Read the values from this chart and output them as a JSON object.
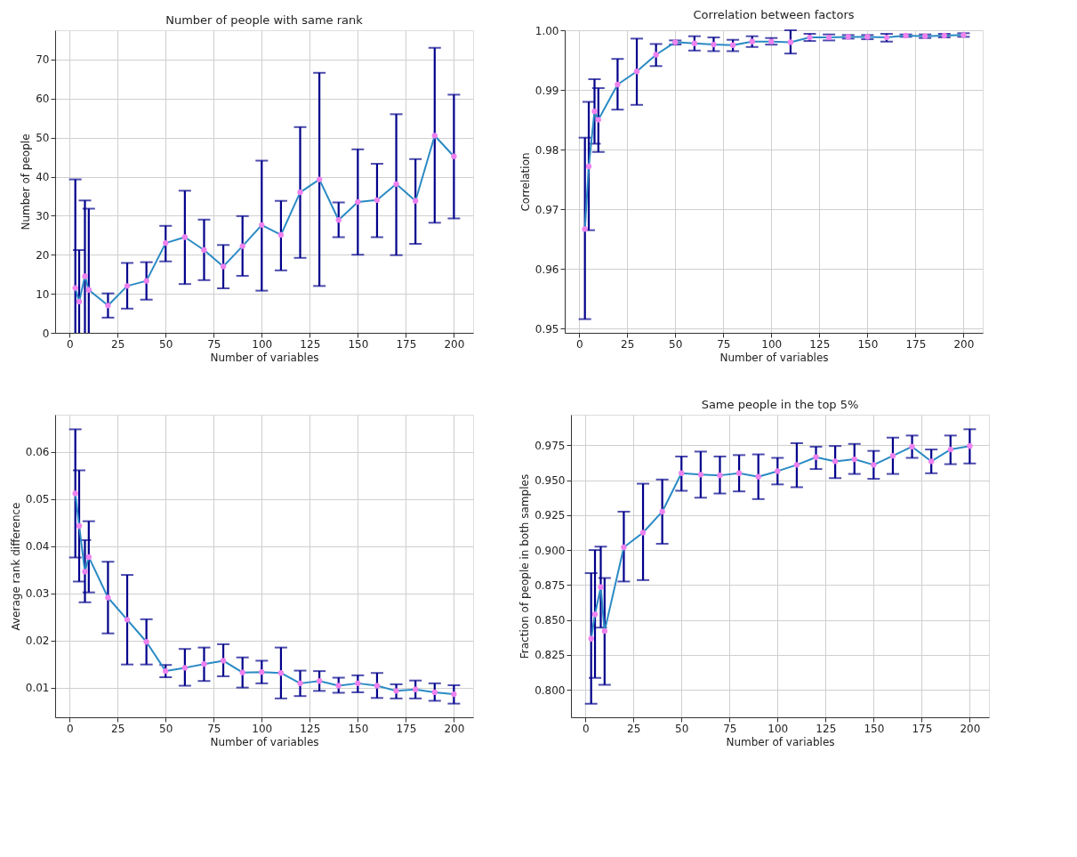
{
  "chart_data": [
    {
      "type": "line",
      "title": "Number of people with same rank",
      "xlabel": "Number of variables",
      "ylabel": "Number of people",
      "grid": true,
      "marker": "circle",
      "line_style": "solid",
      "xlim": [
        -7.5,
        210
      ],
      "xticks": [
        0,
        25,
        50,
        75,
        100,
        125,
        150,
        175,
        200
      ],
      "ylim": [
        0,
        77.5
      ],
      "yticks": [
        0,
        10,
        20,
        30,
        40,
        50,
        60,
        70
      ],
      "series": [
        {
          "color": "#2a8ac4",
          "x": [
            3,
            5,
            8,
            10,
            20,
            30,
            40,
            50,
            60,
            70,
            80,
            90,
            100,
            110,
            120,
            130,
            140,
            150,
            160,
            170,
            180,
            190,
            200
          ],
          "values": [
            11.5,
            8,
            14.5,
            11,
            7,
            12,
            13.3,
            23,
            24.5,
            21.2,
            17,
            22.2,
            27.6,
            25.1,
            36,
            39.3,
            28.9,
            33.5,
            34,
            38.1,
            33.8,
            50.5,
            45.2
          ],
          "errors": [
            [
              0,
              39.3
            ],
            [
              0,
              21.2
            ],
            [
              0,
              33.9
            ],
            [
              0,
              31.8
            ],
            [
              3.9,
              10.1
            ],
            [
              6.2,
              17.9
            ],
            [
              8.5,
              18.1
            ],
            [
              18.3,
              27.4
            ],
            [
              12.5,
              36.4
            ],
            [
              13.5,
              29
            ],
            [
              11.4,
              22.5
            ],
            [
              14.6,
              29.9
            ],
            [
              10.8,
              44.1
            ],
            [
              16,
              33.8
            ],
            [
              19.2,
              52.7
            ],
            [
              12,
              66.6
            ],
            [
              24.5,
              33.4
            ],
            [
              20,
              47
            ],
            [
              24.5,
              43.3
            ],
            [
              19.9,
              56
            ],
            [
              22.8,
              44.5
            ],
            [
              28.2,
              73
            ],
            [
              29.3,
              61
            ]
          ],
          "colors": [
            "#ee82ee",
            "#ee82ee",
            "#ee82ee",
            "#ee82ee",
            "#ee82ee",
            "#ee82ee",
            "#ee82ee",
            "#ee82ee",
            "#ee82ee",
            "#ee82ee",
            "#ee82ee",
            "#ee82ee",
            "#ee82ee",
            "#ee82ee",
            "#ee82ee",
            "#ee82ee",
            "#ee82ee",
            "#ee82ee",
            "#ee82ee",
            "#ee82ee",
            "#ee82ee",
            "#ee82ee",
            "#ee82ee"
          ]
        }
      ]
    },
    {
      "type": "line",
      "title": "Correlation between factors",
      "xlabel": "Number of variables",
      "ylabel": "Correlation",
      "grid": true,
      "marker": "circle",
      "line_style": "solid",
      "xlim": [
        -7.5,
        210
      ],
      "xticks": [
        0,
        25,
        50,
        75,
        100,
        125,
        150,
        175,
        200
      ],
      "ylim": [
        0.9493,
        1.0
      ],
      "yticks": [
        0.95,
        0.96,
        0.97,
        0.98,
        0.99,
        {
          "value": 1.0,
          "label": "1.00"
        }
      ],
      "series": [
        {
          "color": "#2a8ac4",
          "x": [
            3,
            5,
            8,
            10,
            20,
            30,
            40,
            50,
            60,
            70,
            80,
            90,
            100,
            110,
            120,
            130,
            140,
            150,
            160,
            170,
            180,
            190,
            200
          ],
          "values": [
            0.9667,
            0.9772,
            0.9864,
            0.985,
            0.9909,
            0.9931,
            0.9959,
            0.998,
            0.9978,
            0.9976,
            0.9975,
            0.9981,
            0.9981,
            0.998,
            0.9988,
            0.9988,
            0.9989,
            0.9989,
            0.9988,
            0.9991,
            0.999,
            0.9991,
            0.9992
          ],
          "errors": [
            [
              0.9516,
              0.982
            ],
            [
              0.9665,
              0.988
            ],
            [
              0.981,
              0.9918
            ],
            [
              0.9796,
              0.9903
            ],
            [
              0.9867,
              0.9952
            ],
            [
              0.9875,
              0.9986
            ],
            [
              0.994,
              0.9977
            ],
            [
              0.9976,
              0.9983
            ],
            [
              0.9966,
              0.999
            ],
            [
              0.9965,
              0.9988
            ],
            [
              0.9965,
              0.9984
            ],
            [
              0.9972,
              0.999
            ],
            [
              0.9976,
              0.9987
            ],
            [
              0.9961,
              1.0
            ],
            [
              0.9982,
              0.9994
            ],
            [
              0.9983,
              0.9993
            ],
            [
              0.9986,
              0.9992
            ],
            [
              0.9985,
              0.9992
            ],
            [
              0.9981,
              0.9994
            ],
            [
              0.9989,
              0.9993
            ],
            [
              0.9987,
              0.9993
            ],
            [
              0.9988,
              0.9994
            ],
            [
              0.9989,
              0.9995
            ]
          ],
          "colors": [
            "#ee82ee",
            "#ee82ee",
            "#ee82ee",
            "#ee82ee",
            "#ee82ee",
            "#ee82ee",
            "#ee82ee",
            "#ee82ee",
            "#ee82ee",
            "#ee82ee",
            "#ee82ee",
            "#ee82ee",
            "#ee82ee",
            "#ee82ee",
            "#ee82ee",
            "#ee82ee",
            "#ee82ee",
            "#ee82ee",
            "#ee82ee",
            "#ee82ee",
            "#ee82ee",
            "#ee82ee",
            "#ee82ee"
          ]
        }
      ]
    },
    {
      "type": "line",
      "xlabel": "Number of variables",
      "ylabel": "Average rank difference",
      "grid": true,
      "marker": "circle",
      "line_style": "solid",
      "xlim": [
        -7.5,
        210
      ],
      "xticks": [
        0,
        25,
        50,
        75,
        100,
        125,
        150,
        175,
        200
      ],
      "ylim": [
        0.0037,
        0.0679
      ],
      "yticks": [
        0.01,
        0.02,
        0.03,
        0.04,
        0.05,
        0.06
      ],
      "series": [
        {
          "color": "#2a8ac4",
          "x": [
            3,
            5,
            8,
            10,
            20,
            30,
            40,
            50,
            60,
            70,
            80,
            90,
            100,
            110,
            120,
            130,
            140,
            150,
            160,
            170,
            180,
            190,
            200
          ],
          "values": [
            0.0512,
            0.0443,
            0.0346,
            0.0377,
            0.0291,
            0.0244,
            0.0197,
            0.0135,
            0.0142,
            0.015,
            0.0157,
            0.0132,
            0.0133,
            0.0131,
            0.0109,
            0.0114,
            0.0104,
            0.0109,
            0.0104,
            0.0093,
            0.0096,
            0.009,
            0.0086
          ],
          "errors": [
            [
              0.0376,
              0.0648
            ],
            [
              0.0325,
              0.0561
            ],
            [
              0.0281,
              0.0413
            ],
            [
              0.0302,
              0.0453
            ],
            [
              0.0215,
              0.0367
            ],
            [
              0.0149,
              0.0339
            ],
            [
              0.0149,
              0.0245
            ],
            [
              0.0122,
              0.0148
            ],
            [
              0.0104,
              0.0182
            ],
            [
              0.0114,
              0.0185
            ],
            [
              0.0124,
              0.0192
            ],
            [
              0.01,
              0.0164
            ],
            [
              0.0109,
              0.0157
            ],
            [
              0.0077,
              0.0185
            ],
            [
              0.0082,
              0.0136
            ],
            [
              0.0093,
              0.0135
            ],
            [
              0.0089,
              0.0121
            ],
            [
              0.009,
              0.0126
            ],
            [
              0.0078,
              0.0131
            ],
            [
              0.0077,
              0.0107
            ],
            [
              0.0077,
              0.0115
            ],
            [
              0.0072,
              0.0109
            ],
            [
              0.0066,
              0.0105
            ]
          ],
          "colors": [
            "#ee82ee",
            "#ee82ee",
            "#ee82ee",
            "#ee82ee",
            "#ee82ee",
            "#ee82ee",
            "#ee82ee",
            "#ee82ee",
            "#ee82ee",
            "#ee82ee",
            "#ee82ee",
            "#ee82ee",
            "#ee82ee",
            "#ee82ee",
            "#ee82ee",
            "#ee82ee",
            "#ee82ee",
            "#ee82ee",
            "#ee82ee",
            "#ee82ee",
            "#ee82ee",
            "#ee82ee",
            "#ee82ee"
          ]
        }
      ]
    },
    {
      "type": "line",
      "title": "Same people in the top 5%",
      "xlabel": "Number of variables",
      "ylabel": "Fraction of people in both samples",
      "grid": true,
      "marker": "circle",
      "line_style": "solid",
      "xlim": [
        -7.5,
        210
      ],
      "xticks": [
        0,
        25,
        50,
        75,
        100,
        125,
        150,
        175,
        200
      ],
      "ylim": [
        0.7803,
        0.9969
      ],
      "yticks": [
        {
          "value": 0.8,
          "label": "0.800"
        },
        0.825,
        {
          "value": 0.85,
          "label": "0.850"
        },
        0.875,
        {
          "value": 0.9,
          "label": "0.900"
        },
        0.925,
        {
          "value": 0.95,
          "label": "0.950"
        },
        0.975
      ],
      "series": [
        {
          "color": "#2a8ac4",
          "x": [
            3,
            5,
            8,
            10,
            20,
            30,
            40,
            50,
            60,
            70,
            80,
            90,
            100,
            110,
            120,
            130,
            140,
            150,
            160,
            170,
            180,
            190,
            200
          ],
          "values": [
            0.8365,
            0.854,
            0.8735,
            0.842,
            0.902,
            0.9125,
            0.9275,
            0.955,
            0.954,
            0.9535,
            0.955,
            0.9525,
            0.9565,
            0.961,
            0.9665,
            0.9635,
            0.965,
            0.961,
            0.9675,
            0.974,
            0.9635,
            0.972,
            0.9745
          ],
          "errors": [
            [
              0.79,
              0.8835
            ],
            [
              0.8085,
              0.9
            ],
            [
              0.8445,
              0.9025
            ],
            [
              0.8035,
              0.88
            ],
            [
              0.8775,
              0.9275
            ],
            [
              0.8785,
              0.9475
            ],
            [
              0.9045,
              0.9505
            ],
            [
              0.9425,
              0.967
            ],
            [
              0.9375,
              0.9705
            ],
            [
              0.9405,
              0.967
            ],
            [
              0.942,
              0.968
            ],
            [
              0.9365,
              0.9685
            ],
            [
              0.947,
              0.966
            ],
            [
              0.945,
              0.9765
            ],
            [
              0.958,
              0.974
            ],
            [
              0.9515,
              0.9745
            ],
            [
              0.9545,
              0.976
            ],
            [
              0.951,
              0.971
            ],
            [
              0.9545,
              0.9805
            ],
            [
              0.966,
              0.982
            ],
            [
              0.955,
              0.972
            ],
            [
              0.9615,
              0.982
            ],
            [
              0.962,
              0.9865
            ]
          ],
          "colors": [
            "#ee82ee",
            "#ee82ee",
            "#ee82ee",
            "#ee82ee",
            "#ee82ee",
            "#ee82ee",
            "#ee82ee",
            "#ee82ee",
            "#ee82ee",
            "#ee82ee",
            "#ee82ee",
            "#ee82ee",
            "#ee82ee",
            "#ee82ee",
            "#ee82ee",
            "#ee82ee",
            "#ee82ee",
            "#ee82ee",
            "#ee82ee",
            "#ee82ee",
            "#ee82ee",
            "#ee82ee",
            "#ee82ee"
          ]
        }
      ]
    }
  ]
}
